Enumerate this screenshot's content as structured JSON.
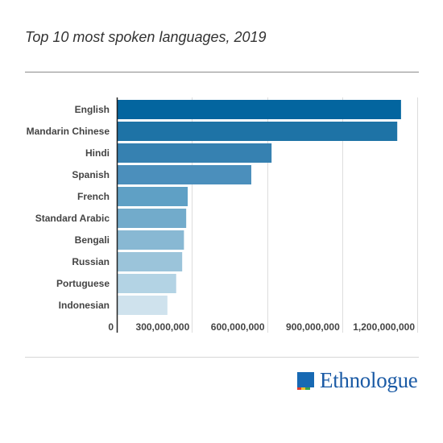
{
  "title": "Top 10 most spoken languages, 2019",
  "logo": {
    "text": "Ethnologue"
  },
  "chart_data": {
    "type": "bar",
    "orientation": "horizontal",
    "title": "Top 10 most spoken languages, 2019",
    "xlabel": "",
    "ylabel": "",
    "categories": [
      "English",
      "Mandarin Chinese",
      "Hindi",
      "Spanish",
      "French",
      "Standard Arabic",
      "Bengali",
      "Russian",
      "Portuguese",
      "Indonesian"
    ],
    "values": [
      1132000000,
      1117000000,
      615000000,
      534000000,
      280000000,
      274000000,
      265000000,
      258000000,
      234000000,
      199000000
    ],
    "xlim": [
      0,
      1200000000
    ],
    "xticks": [
      0,
      300000000,
      600000000,
      900000000,
      1200000000
    ],
    "xtick_labels": [
      "0",
      "300,000,000",
      "600,000,000",
      "900,000,000",
      "1,200,000,000"
    ],
    "grid": true,
    "bar_colors": [
      "#03659f",
      "#1e73a6",
      "#3681b1",
      "#4b8fbc",
      "#5fa0c5",
      "#72abcb",
      "#88b8d3",
      "#9bc4da",
      "#b3d3e4",
      "#cfe2ed"
    ]
  }
}
